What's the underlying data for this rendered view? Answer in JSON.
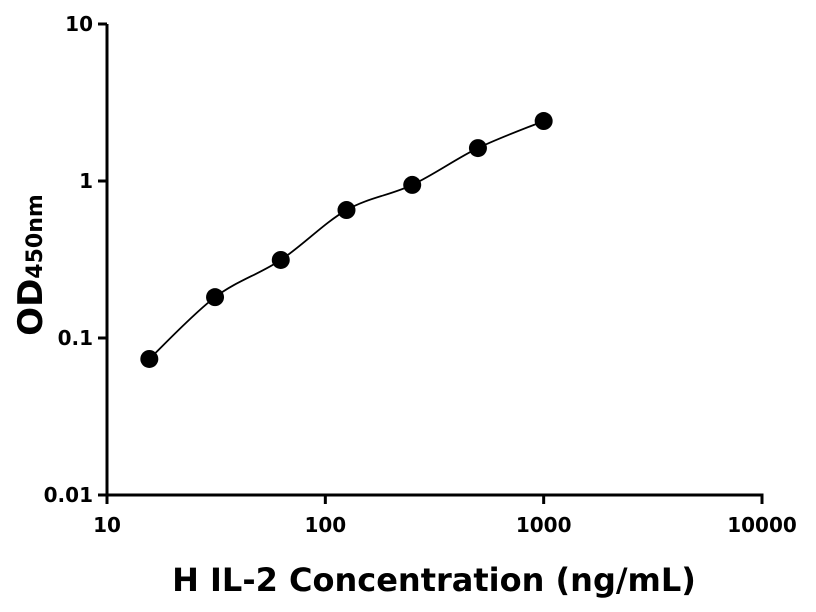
{
  "chart_data": {
    "type": "scatter",
    "x_label": "H IL-2 Concentration (ng/mL)",
    "y_label": "OD",
    "y_label_subscript": "450nm",
    "x": [
      15.625,
      31.25,
      62.5,
      125,
      250,
      500,
      1000
    ],
    "values": [
      0.0735,
      0.182,
      0.314,
      0.653,
      0.944,
      1.62,
      2.41
    ],
    "color": "#000000",
    "fit_curve": true,
    "x_log": true,
    "y_log": true,
    "xlim": [
      10,
      10000
    ],
    "xticks": [
      10,
      100,
      1000,
      10000
    ],
    "ylim": [
      0.01,
      10
    ],
    "yticks": [
      0.01,
      0.1,
      1,
      10
    ]
  }
}
